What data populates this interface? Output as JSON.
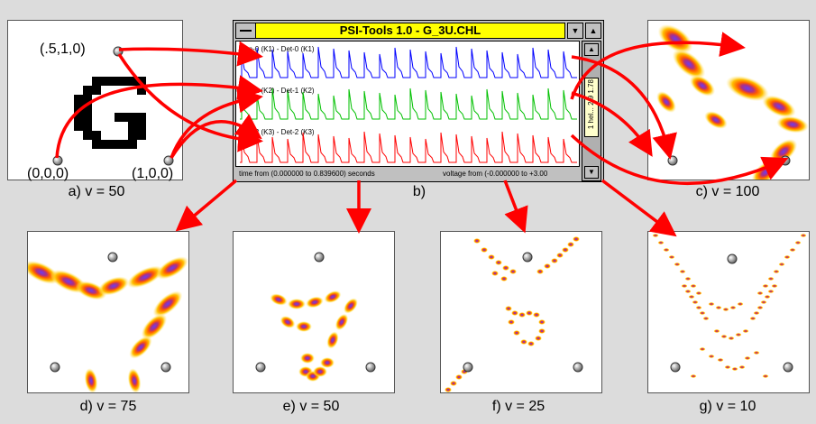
{
  "window": {
    "title": "PSI-Tools 1.0 - G_3U.CHL",
    "dropdown_glyph": "▼",
    "up_glyph": "▲",
    "scroll_up_glyph": "▲",
    "scroll_down_glyph": "▼",
    "thumb_label": "1 hel... 2.9 1.78",
    "channels": [
      {
        "label": "Gen-0 (K1) - Det-0 (K1)",
        "color": "#0000ff"
      },
      {
        "label": "Gen-1 (K2) - Det-1 (K2)",
        "color": "#00c000"
      },
      {
        "label": "Gen-2 (K3) - Det-2 (K3)",
        "color": "#ff0000"
      }
    ],
    "status_time": "time from (0.000000 to 0.839600) seconds",
    "status_voltage": "voltage from (-0.000000 to +3.00"
  },
  "panel_a": {
    "letter": "G",
    "corner_top": "(.5,1,0)",
    "corner_left": "(0,0,0)",
    "corner_right": "(1,0,0)",
    "caption": "a) v = 50"
  },
  "panel_b": {
    "caption": "b)"
  },
  "panel_c": {
    "caption": "c) v = 100"
  },
  "panel_d": {
    "caption": "d) v = 75"
  },
  "panel_e": {
    "caption": "e) v = 50"
  },
  "panel_f": {
    "caption": "f) v = 25"
  },
  "panel_g": {
    "caption": "g) v = 10"
  },
  "colors": {
    "arrow": "#ff0000",
    "heat_outer": "#ffd700",
    "heat_mid": "#ff8c00",
    "heat_core": "#8a2be2"
  }
}
